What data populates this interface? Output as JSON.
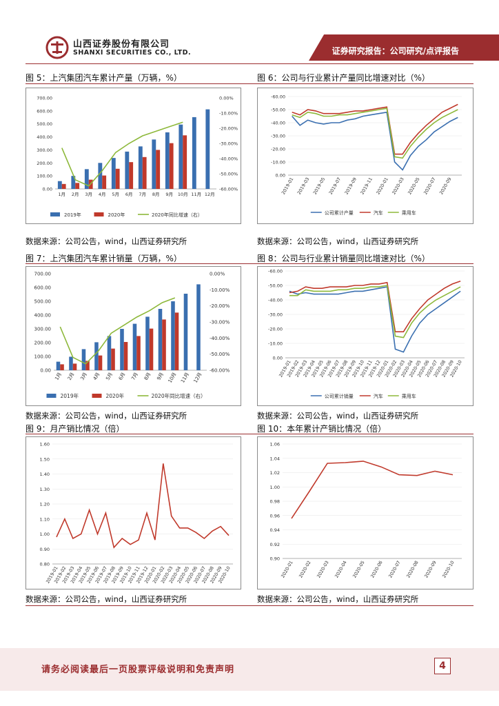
{
  "header": {
    "company_cn": "山西证券股份有限公司",
    "company_en": "SHANXI SECURITIES CO., LTD.",
    "banner": "证券研究报告：公司研究/点评报告",
    "brand_color": "#9b2d2f"
  },
  "footer": {
    "disclaimer": "请务必阅读最后一页股票评级说明和免责声明",
    "page": "4"
  },
  "figures": {
    "fig5": {
      "title": "图 5：上汽集团汽车累计产量（万辆，%）",
      "source": "数据来源：公司公告，wind，山西证券研究所"
    },
    "fig6": {
      "title": "图 6：公司与行业累计产量同比增速对比（%）",
      "source": "数据来源：公司公告，wind，山西证券研究所"
    },
    "fig7": {
      "title": "图 7：上汽集团汽车累计销量（万辆，%）",
      "source": "数据来源：公司公告，wind，山西证券研究所"
    },
    "fig8": {
      "title": "图 8：公司与行业累计销量同比增速对比（%）",
      "source": "数据来源：公司公告，wind，山西证券研究所"
    },
    "fig9": {
      "title": "图 9：月产销比情况（倍）",
      "source": "数据来源：公司公告，wind，山西证券研究所"
    },
    "fig10": {
      "title": "图 10：本年累计产销比情况（倍）",
      "source": "数据来源：公司公告，wind，山西证券研究所"
    }
  },
  "chart_data": [
    {
      "id": "fig5",
      "type": "bar",
      "categories": [
        "1月",
        "2月",
        "3月",
        "4月",
        "5月",
        "6月",
        "7月",
        "8月",
        "9月",
        "10月",
        "11月",
        "12月"
      ],
      "series": [
        {
          "name": "2019年",
          "color": "#3a6fb0",
          "values": [
            60,
            100,
            152,
            200,
            238,
            287,
            327,
            380,
            435,
            495,
            552,
            612
          ]
        },
        {
          "name": "2020年",
          "color": "#c0392b",
          "values": [
            38,
            46,
            71,
            103,
            155,
            206,
            245,
            300,
            352,
            412,
            null,
            null
          ]
        },
        {
          "name": "2020年同比增速（右）",
          "color": "#8db83a",
          "axis": "right",
          "values": [
            -33,
            -54,
            -58,
            -48,
            -36,
            -30,
            -25,
            -22,
            -19,
            -16,
            null,
            null
          ]
        }
      ],
      "ylim": [
        0,
        700
      ],
      "yticks": [
        "0.00",
        "100.00",
        "200.00",
        "300.00",
        "400.00",
        "500.00",
        "600.00",
        "700.00"
      ],
      "y2lim": [
        -60,
        0
      ],
      "y2ticks": [
        "0.00%",
        "-10.00%",
        "-20.00%",
        "-30.00%",
        "-40.00%",
        "-50.00%",
        "-60.00%"
      ],
      "legend": "bottom"
    },
    {
      "id": "fig6",
      "type": "line",
      "categories": [
        "2019-01",
        "2019-02",
        "2019-03",
        "2019-04",
        "2019-05",
        "2019-06",
        "2019-07",
        "2019-08",
        "2019-09",
        "2019-10",
        "2019-11",
        "2019-12",
        "2020-01",
        "2020-02",
        "2020-03",
        "2020-04",
        "2020-05",
        "2020-06",
        "2020-07",
        "2020-08",
        "2020-09",
        "2020-10"
      ],
      "xticks": [
        "2019-01",
        "2019-03",
        "2019-05",
        "2019-07",
        "2019-09",
        "2019-11",
        "2020-01",
        "2020-03",
        "2020-05",
        "2020-07",
        "2020-09"
      ],
      "series": [
        {
          "name": "公司累计产量",
          "color": "#3a6fb0",
          "values": [
            -15,
            -22,
            -18,
            -20,
            -21,
            -20,
            -20,
            -18,
            -17,
            -15,
            -14,
            -13,
            -12,
            -50,
            -56,
            -45,
            -38,
            -33,
            -27,
            -23,
            -19,
            -16
          ]
        },
        {
          "name": "汽车",
          "color": "#c0392b",
          "values": [
            -12,
            -14,
            -10,
            -11,
            -13,
            -13,
            -13,
            -12,
            -11,
            -11,
            -10,
            -9,
            -8,
            -44,
            -44,
            -35,
            -28,
            -22,
            -17,
            -12,
            -9,
            -6
          ]
        },
        {
          "name": "乘用车",
          "color": "#8db83a",
          "values": [
            -14,
            -16,
            -12,
            -13,
            -15,
            -15,
            -14,
            -14,
            -13,
            -12,
            -11,
            -10,
            -9,
            -46,
            -47,
            -38,
            -31,
            -25,
            -20,
            -16,
            -13,
            -10
          ]
        }
      ],
      "ylim": [
        -60,
        0
      ],
      "yticks": [
        "0.00",
        "-10.00",
        "-20.00",
        "-30.00",
        "-40.00",
        "-50.00",
        "-60.00"
      ],
      "legend": "bottom"
    },
    {
      "id": "fig7",
      "type": "bar",
      "categories": [
        "1月",
        "2月",
        "3月",
        "4月",
        "5月",
        "6月",
        "7月",
        "8月",
        "9月",
        "10月",
        "11月",
        "12月"
      ],
      "series": [
        {
          "name": "2019年",
          "color": "#3a6fb0",
          "values": [
            62,
            98,
            153,
            203,
            248,
            300,
            337,
            388,
            445,
            500,
            555,
            623
          ]
        },
        {
          "name": "2020年",
          "color": "#c0392b",
          "values": [
            43,
            48,
            68,
            107,
            157,
            205,
            248,
            302,
            368,
            418,
            null,
            null
          ]
        },
        {
          "name": "2020年同比增速（右）",
          "color": "#8db83a",
          "axis": "right",
          "values": [
            -33,
            -52,
            -56,
            -48,
            -37,
            -32,
            -27,
            -23,
            -18,
            -15,
            null,
            null
          ]
        }
      ],
      "ylim": [
        0,
        700
      ],
      "yticks": [
        "0.00",
        "100.00",
        "200.00",
        "300.00",
        "400.00",
        "500.00",
        "600.00",
        "700.00"
      ],
      "y2lim": [
        -60,
        0
      ],
      "y2ticks": [
        "0.00%",
        "-10.00%",
        "-20.00%",
        "-30.00%",
        "-40.00%",
        "-50.00%",
        "-60.00%"
      ],
      "legend": "bottom"
    },
    {
      "id": "fig8",
      "type": "line",
      "categories": [
        "2019-01",
        "2019-02",
        "2019-03",
        "2019-04",
        "2019-05",
        "2019-06",
        "2019-07",
        "2019-08",
        "2019-09",
        "2019-10",
        "2019-11",
        "2019-12",
        "2020-01",
        "2020-02",
        "2020-03",
        "2020-04",
        "2020-05",
        "2020-06",
        "2020-07",
        "2020-08",
        "2020-09",
        "2020-10"
      ],
      "series": [
        {
          "name": "公司累计销量",
          "color": "#3a6fb0",
          "values": [
            -14,
            -16,
            -15,
            -16,
            -16,
            -16,
            -16,
            -15,
            -14,
            -14,
            -13,
            -12,
            -11,
            -54,
            -56,
            -45,
            -36,
            -30,
            -26,
            -22,
            -18,
            -14
          ]
        },
        {
          "name": "汽车",
          "color": "#c0392b",
          "values": [
            -15,
            -14,
            -11,
            -12,
            -12,
            -11,
            -11,
            -11,
            -10,
            -10,
            -9,
            -9,
            -8,
            -42,
            -42,
            -33,
            -26,
            -20,
            -16,
            -12,
            -9,
            -7
          ]
        },
        {
          "name": "乘用车",
          "color": "#8db83a",
          "values": [
            -17,
            -17,
            -13,
            -14,
            -14,
            -14,
            -13,
            -13,
            -12,
            -12,
            -11,
            -11,
            -10,
            -45,
            -46,
            -36,
            -29,
            -24,
            -20,
            -17,
            -14,
            -11
          ]
        }
      ],
      "ylim": [
        -60,
        0
      ],
      "yticks": [
        "0.00",
        "-10.00",
        "-20.00",
        "-30.00",
        "-40.00",
        "-50.00",
        "-60.00"
      ],
      "legend": "bottom"
    },
    {
      "id": "fig9",
      "type": "line",
      "categories": [
        "2019-01",
        "2019-02",
        "2019-03",
        "2019-04",
        "2019-05",
        "2019-06",
        "2019-07",
        "2019-08",
        "2019-09",
        "2019-10",
        "2019-11",
        "2019-12",
        "2020-01",
        "2020-02",
        "2020-03",
        "2020-04",
        "2020-05",
        "2020-06",
        "2020-07",
        "2020-08",
        "2020-09",
        "2020-10"
      ],
      "series": [
        {
          "name": "月产销比",
          "color": "#c0392b",
          "values": [
            0.98,
            1.1,
            0.97,
            1.0,
            1.16,
            1.0,
            1.14,
            0.91,
            0.97,
            0.93,
            0.96,
            1.14,
            0.96,
            1.47,
            1.12,
            1.04,
            1.04,
            1.01,
            0.97,
            1.02,
            1.05,
            0.99
          ]
        }
      ],
      "ylim": [
        0.8,
        1.6
      ],
      "yticks": [
        "0.80",
        "0.90",
        "1.00",
        "1.10",
        "1.20",
        "1.30",
        "1.40",
        "1.50",
        "1.60"
      ],
      "legend": "none"
    },
    {
      "id": "fig10",
      "type": "line",
      "categories": [
        "2020-01",
        "2020-02",
        "2020-03",
        "2020-04",
        "2020-05",
        "2020-06",
        "2020-07",
        "2020-08",
        "2020-09",
        "2020-10"
      ],
      "series": [
        {
          "name": "本年累计产销比",
          "color": "#c0392b",
          "values": [
            0.956,
            0.994,
            1.033,
            1.034,
            1.036,
            1.028,
            1.017,
            1.016,
            1.022,
            1.017
          ]
        }
      ],
      "ylim": [
        0.9,
        1.06
      ],
      "yticks": [
        "0.90",
        "0.92",
        "0.94",
        "0.96",
        "0.98",
        "1.00",
        "1.02",
        "1.04",
        "1.06"
      ],
      "legend": "none"
    }
  ]
}
